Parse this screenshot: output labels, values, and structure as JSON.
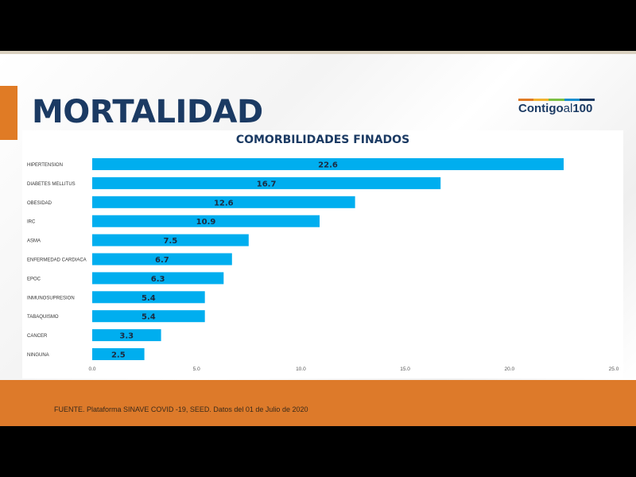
{
  "slide": {
    "title": "MORTALIDAD",
    "logo": {
      "main": "Contigo",
      "al": "al",
      "num": "100"
    },
    "footer": "FUENTE. Plataforma SINAVE COVID -19, SEED. Datos del 01 de Julio de 2020"
  },
  "colors": {
    "bar": "#00aeef",
    "title": "#1b3a63",
    "accent": "#dd7a2a"
  },
  "chart_data": {
    "type": "bar",
    "orientation": "horizontal",
    "title": "COMORBILIDADES FINADOS",
    "categories": [
      "HIPERTENSION",
      "DIABETES MELLITUS",
      "OBESIDAD",
      "IRC",
      "ASMA",
      "ENFERMEDAD CARDIACA",
      "EPOC",
      "INMUNOSUPRESION",
      "TABAQUISMO",
      "CANCER",
      "NINGUNA"
    ],
    "values": [
      22.6,
      16.7,
      12.6,
      10.9,
      7.5,
      6.7,
      6.3,
      5.4,
      5.4,
      3.3,
      2.5
    ],
    "value_labels": [
      "22.6",
      "16.7",
      "12.6",
      "10.9",
      "7.5",
      "6.7",
      "6.3",
      "5.4",
      "5.4",
      "3.3",
      "2.5"
    ],
    "xlim": [
      0,
      25
    ],
    "xticks": [
      0,
      5,
      10,
      15,
      20,
      25
    ],
    "xtick_labels": [
      "0.0",
      "5.0",
      "10.0",
      "15.0",
      "20.0",
      "25.0"
    ],
    "grid": false,
    "legend": "none"
  }
}
